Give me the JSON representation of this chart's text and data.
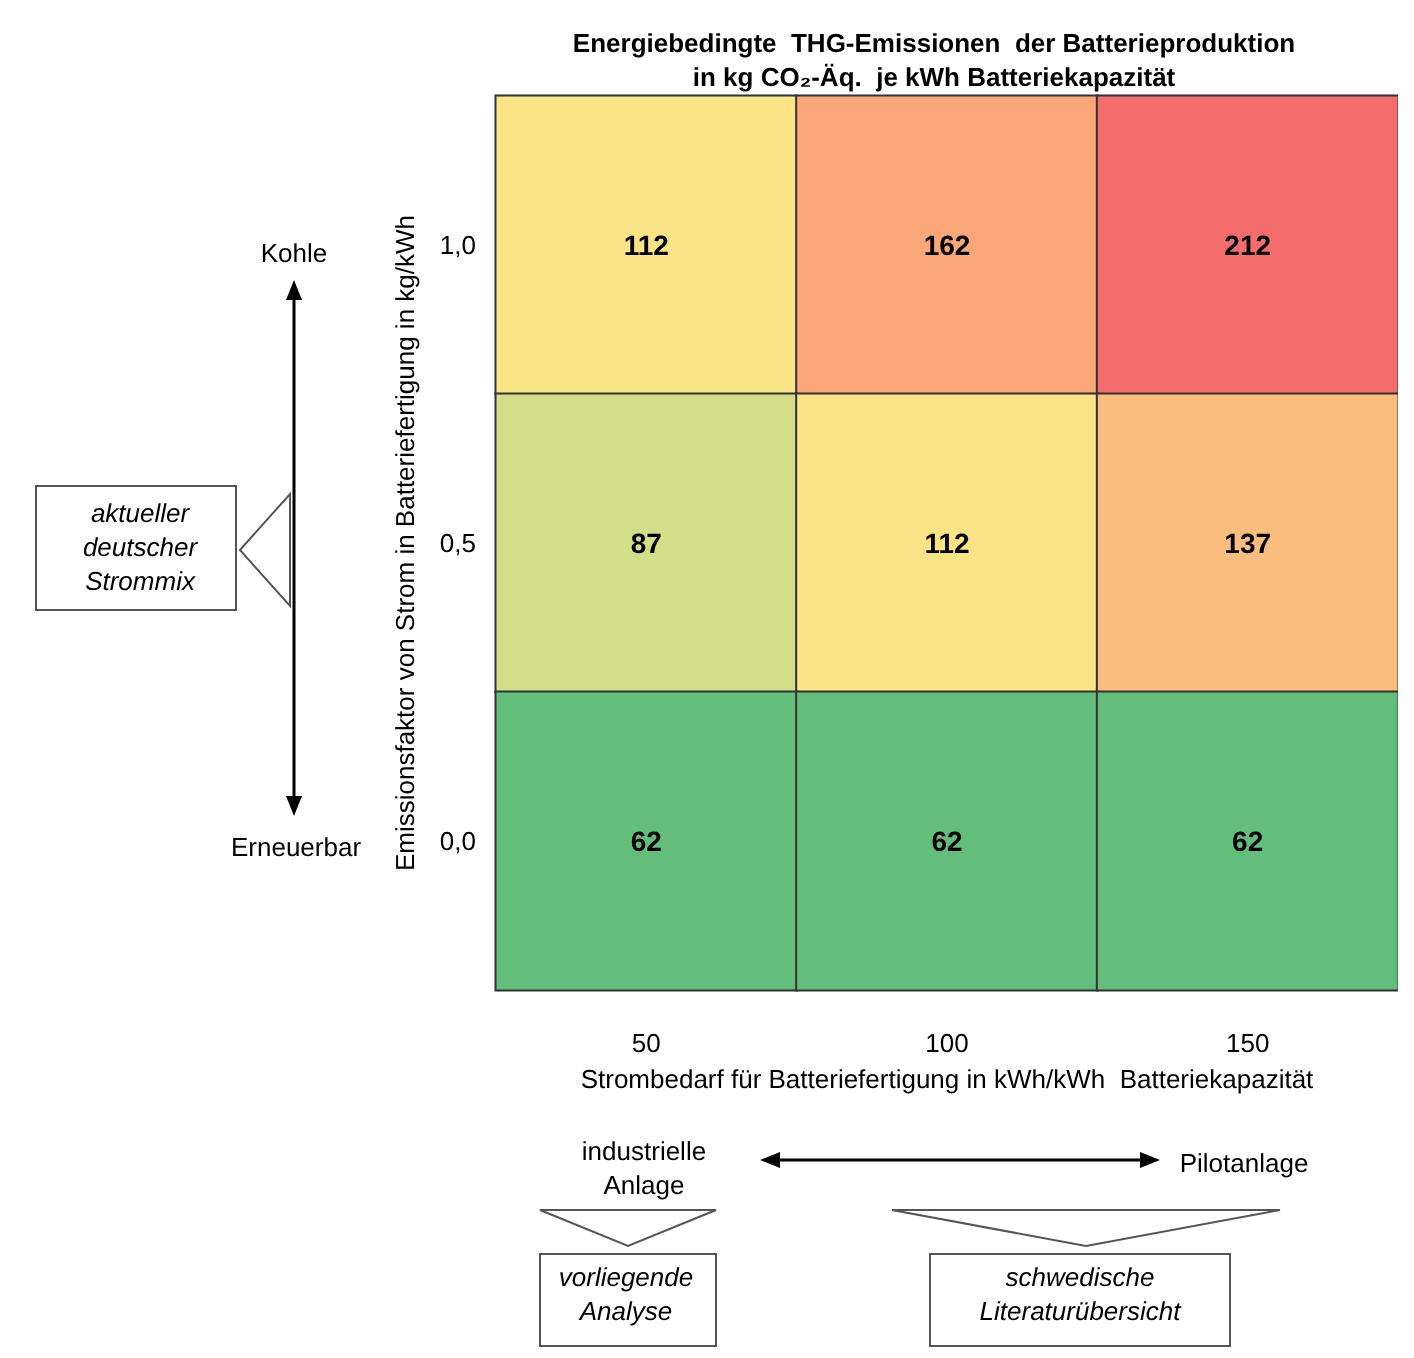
{
  "chart_data": {
    "type": "heatmap",
    "title": "Energiebedingte  THG-Emissionen  der Batterieproduktion\nin kg CO₂-Äq.  je kWh Batteriekapazität",
    "xlabel": "Strombedarf für Batteriefertigung in kWh/kWh  Batteriekapazität",
    "ylabel": "Emissionsfaktor von Strom in Batteriefertigung in kg/kWh",
    "categories": [
      "50",
      "100",
      "150"
    ],
    "y_categories": [
      "1,0",
      "0,5",
      "0,0"
    ],
    "cells": [
      [
        112,
        162,
        212
      ],
      [
        87,
        112,
        137
      ],
      [
        62,
        62,
        62
      ]
    ],
    "colors": [
      [
        "#fbe486",
        "#f9a679",
        "#f46c6c"
      ],
      [
        "#d3de88",
        "#fbe486",
        "#fbbd7e"
      ],
      [
        "#63be7b",
        "#63be7b",
        "#63be7b"
      ]
    ],
    "data_labels": true,
    "grid": false,
    "annotations": [
      "Kohle",
      "Erneuerbar",
      "aktueller\ndeutscher\nStrommix",
      "industrielle\nAnlage",
      "Pilotanlage",
      "vorliegende\nAnalyse",
      "schwedische\nLiteraturübersicht"
    ]
  }
}
